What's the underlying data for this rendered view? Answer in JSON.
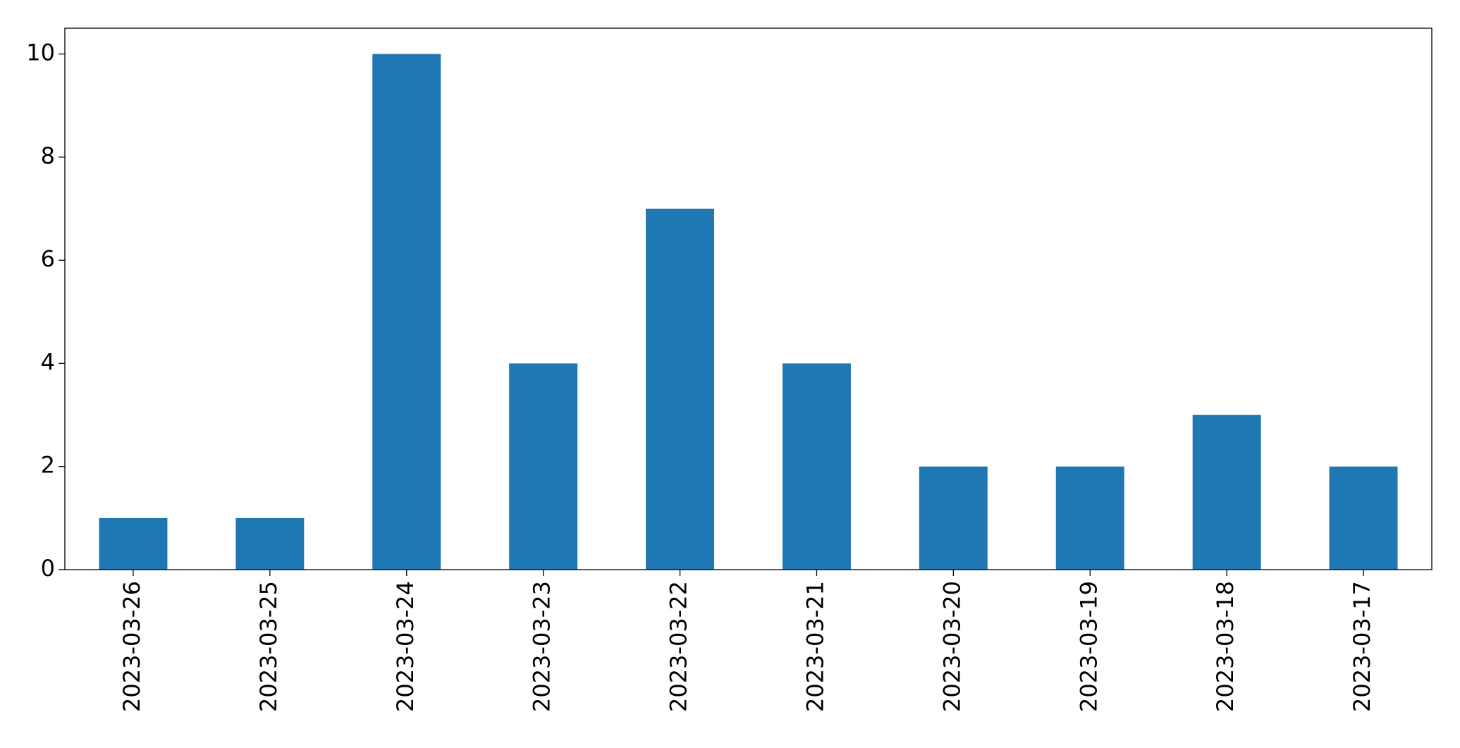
{
  "chart_data": {
    "type": "bar",
    "categories": [
      "2023-03-26",
      "2023-03-25",
      "2023-03-24",
      "2023-03-23",
      "2023-03-22",
      "2023-03-21",
      "2023-03-20",
      "2023-03-19",
      "2023-03-18",
      "2023-03-17"
    ],
    "values": [
      1,
      1,
      10,
      4,
      7,
      4,
      2,
      2,
      3,
      2
    ],
    "color": "#1f77b4",
    "ylim": [
      0,
      10.5
    ],
    "yticks": [
      0,
      2,
      4,
      6,
      8,
      10
    ],
    "grid": false
  }
}
